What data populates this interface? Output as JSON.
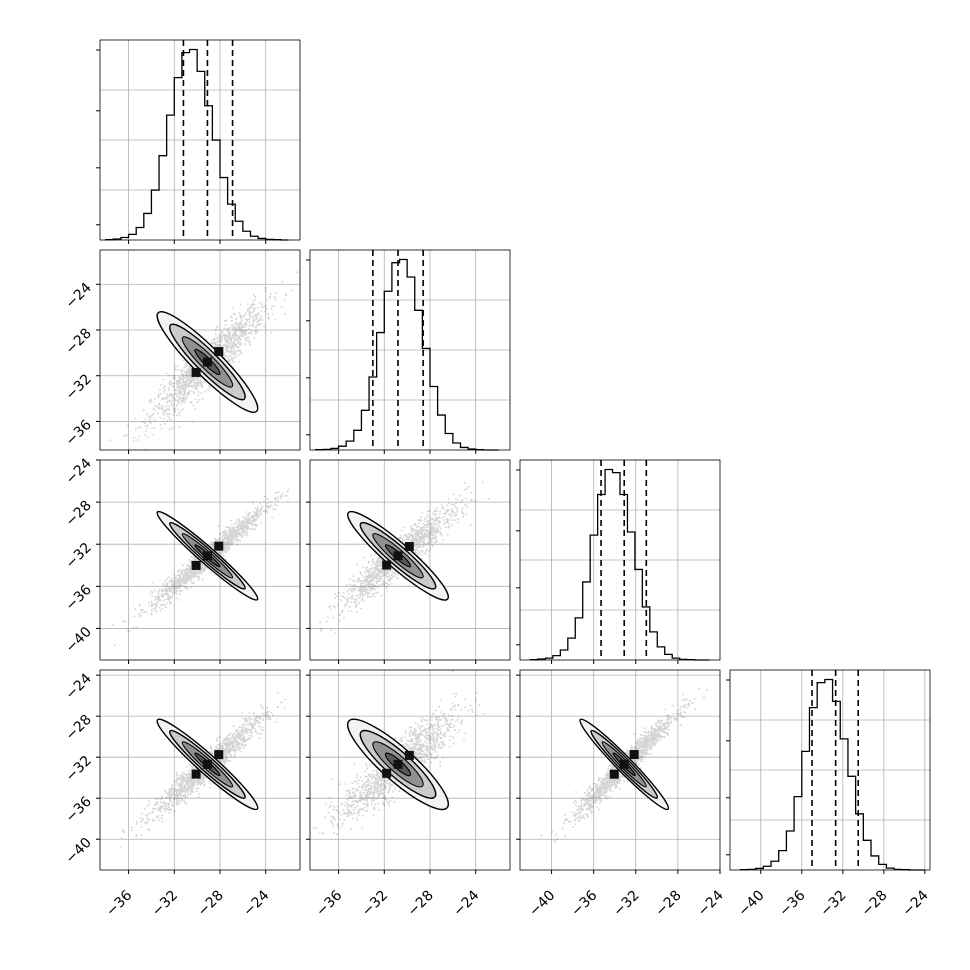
{
  "chart_data": {
    "type": "corner",
    "title": "",
    "parameters": [
      "",
      "",
      "",
      ""
    ],
    "colors": {
      "line": "#000000",
      "grid": "#b0b0b0",
      "frame": "#000000",
      "scatter": "#3a3a3a"
    },
    "grid": true,
    "axes": {
      "p0": {
        "lim": [
          -38.5,
          -21.0
        ],
        "ticks": [
          -36,
          -32,
          -28,
          -24
        ]
      },
      "p1": {
        "lim": [
          -38.5,
          -21.0
        ],
        "ticks": [
          -36,
          -32,
          -28,
          -24
        ],
        "left_ticks": [
          -24,
          -28,
          -32,
          -36
        ]
      },
      "p2": {
        "lim": [
          -43.0,
          -24.0
        ],
        "ticks": [
          -40,
          -36,
          -32,
          -28,
          -24
        ],
        "left_ticks": [
          -24,
          -28,
          -32,
          -36,
          -40
        ]
      },
      "p3": {
        "lim": [
          -43.0,
          -23.5
        ],
        "ticks": [
          -40,
          -36,
          -32,
          -28,
          -24
        ],
        "left_ticks": [
          -24,
          -28,
          -32,
          -36,
          -40
        ]
      }
    },
    "histograms": [
      {
        "param": "p0",
        "range": [
          -38,
          -22
        ],
        "bins": 24,
        "counts": [
          1,
          3,
          8,
          18,
          40,
          85,
          160,
          270,
          400,
          520,
          600,
          610,
          540,
          430,
          320,
          200,
          115,
          60,
          28,
          12,
          5,
          2,
          1,
          0
        ],
        "quantiles": [
          -31.2,
          -29.1,
          -26.9
        ]
      },
      {
        "param": "p1",
        "range": [
          -38,
          -22
        ],
        "bins": 24,
        "counts": [
          1,
          2,
          5,
          12,
          28,
          62,
          125,
          230,
          370,
          500,
          590,
          600,
          545,
          440,
          320,
          200,
          110,
          52,
          22,
          8,
          3,
          1,
          0,
          0
        ],
        "quantiles": [
          -33.0,
          -30.8,
          -28.6
        ]
      },
      {
        "param": "p2",
        "range": [
          -42,
          -25
        ],
        "bins": 24,
        "counts": [
          1,
          3,
          6,
          14,
          32,
          70,
          135,
          250,
          400,
          530,
          610,
          600,
          530,
          410,
          290,
          170,
          90,
          42,
          18,
          6,
          2,
          1,
          0,
          0
        ],
        "quantiles": [
          -35.3,
          -33.1,
          -31.0
        ]
      },
      {
        "param": "p3",
        "range": [
          -42,
          -24
        ],
        "bins": 24,
        "counts": [
          1,
          2,
          5,
          12,
          28,
          62,
          125,
          235,
          380,
          520,
          600,
          610,
          540,
          420,
          300,
          180,
          95,
          45,
          18,
          6,
          2,
          1,
          0,
          0
        ],
        "quantiles": [
          -35.0,
          -32.7,
          -30.5
        ]
      }
    ],
    "correlations": [
      {
        "x": "p0",
        "y": "p1",
        "rho": 0.92
      },
      {
        "x": "p0",
        "y": "p2",
        "rho": 0.97
      },
      {
        "x": "p1",
        "y": "p2",
        "rho": 0.93
      },
      {
        "x": "p0",
        "y": "p3",
        "rho": 0.96
      },
      {
        "x": "p1",
        "y": "p3",
        "rho": 0.88
      },
      {
        "x": "p2",
        "y": "p3",
        "rho": 0.97
      }
    ],
    "means": {
      "p0": -29.1,
      "p1": -30.8,
      "p2": -33.1,
      "p3": -32.7
    },
    "sigmas": {
      "p0": 2.2,
      "p1": 2.2,
      "p2": 2.1,
      "p3": 2.2
    },
    "contour_levels_sigma": [
      0.5,
      1.0,
      1.5,
      2.0
    ]
  }
}
